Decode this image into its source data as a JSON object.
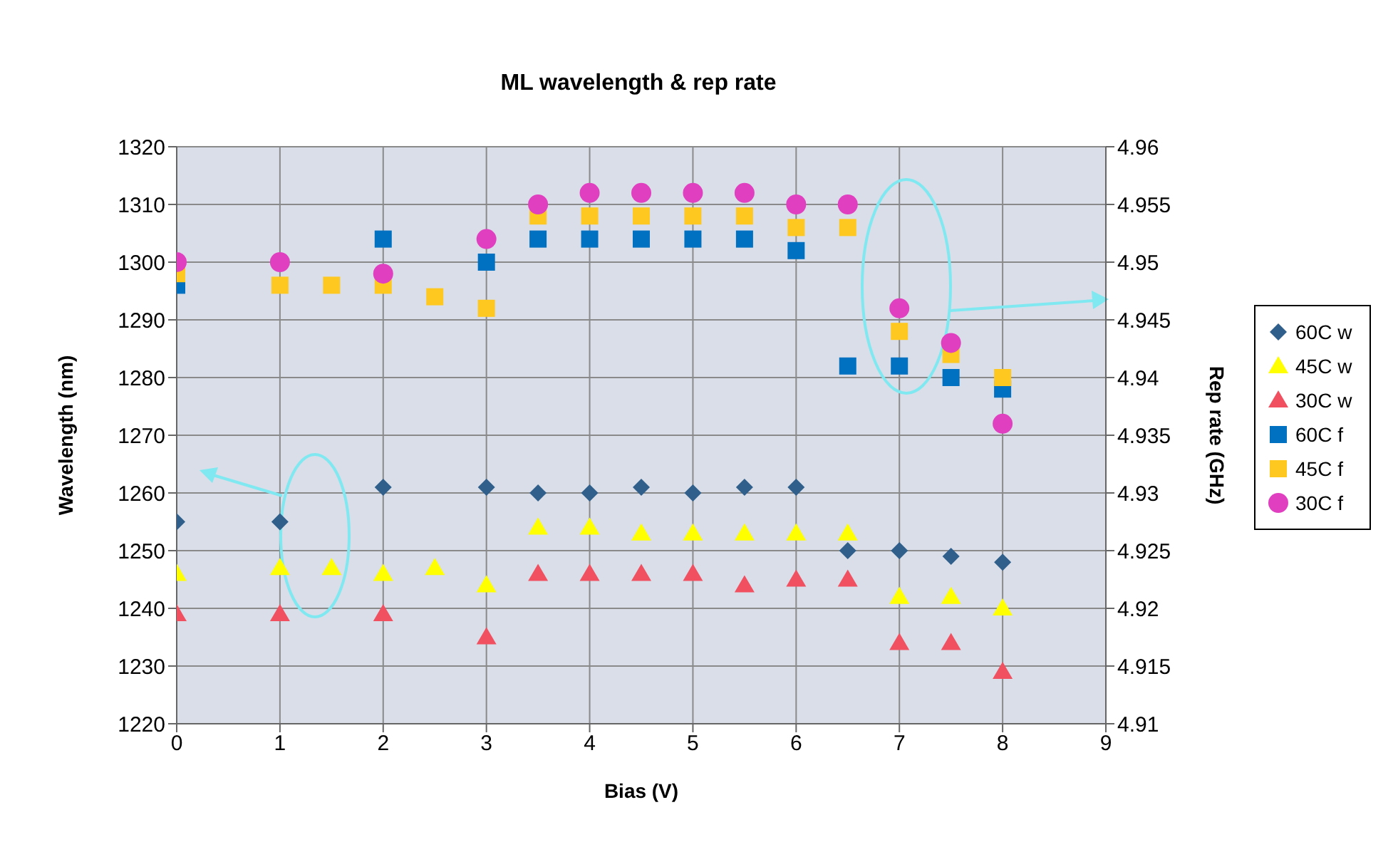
{
  "chart_data": {
    "type": "scatter",
    "title": "ML wavelength & rep rate",
    "xlabel": "Bias (V)",
    "ylabel": "Wavelength (nm)",
    "y2label": "Rep rate (GHz)",
    "xlim": [
      0,
      9
    ],
    "xticks": [
      0,
      1,
      2,
      3,
      4,
      5,
      6,
      7,
      8,
      9
    ],
    "ylim": [
      1220,
      1320
    ],
    "yticks": [
      1220,
      1230,
      1240,
      1250,
      1260,
      1270,
      1280,
      1290,
      1300,
      1310,
      1320
    ],
    "y2lim": [
      4.91,
      4.96
    ],
    "y2ticks": [
      4.91,
      4.915,
      4.92,
      4.925,
      4.93,
      4.935,
      4.94,
      4.945,
      4.95,
      4.955,
      4.96
    ],
    "grid": true,
    "legend": "right",
    "series": [
      {
        "name": "60C w",
        "color": "#2f5f8a",
        "marker": "diamond",
        "x": [
          0,
          1,
          2,
          3,
          3.5,
          4,
          4.5,
          5,
          5.5,
          6,
          6.5,
          7,
          7.5,
          8
        ],
        "values": [
          1255,
          1255,
          1261,
          1261,
          1260,
          1260,
          1261,
          1260,
          1261,
          1261,
          1250,
          1250,
          1249,
          1248
        ]
      },
      {
        "name": "45C w",
        "color": "#ffff00",
        "marker": "triangle",
        "x": [
          0,
          1,
          1.5,
          2,
          2.5,
          3,
          3.5,
          4,
          4.5,
          5,
          5.5,
          6,
          6.5,
          7,
          7.5,
          8
        ],
        "values": [
          1246,
          1247,
          1247,
          1246,
          1247,
          1244,
          1254,
          1254,
          1253,
          1253,
          1253,
          1253,
          1253,
          1242,
          1242,
          1240
        ]
      },
      {
        "name": "30C w",
        "color": "#f05060",
        "marker": "triangle",
        "x": [
          0,
          1,
          2,
          3,
          3.5,
          4,
          4.5,
          5,
          5.5,
          6,
          6.5,
          7,
          7.5,
          8
        ],
        "values": [
          1239,
          1239,
          1239,
          1235,
          1246,
          1246,
          1246,
          1246,
          1244,
          1245,
          1245,
          1234,
          1234,
          1229
        ]
      },
      {
        "name": "60C f",
        "color": "#0070c0",
        "marker": "square",
        "axis": "y2",
        "x": [
          0,
          1,
          2,
          3,
          3.5,
          4,
          4.5,
          5,
          5.5,
          6,
          6.5,
          7,
          7.5,
          8
        ],
        "values": [
          4.948,
          null,
          4.952,
          4.95,
          4.952,
          4.952,
          4.952,
          4.952,
          4.952,
          4.951,
          4.941,
          4.941,
          4.94,
          4.939
        ]
      },
      {
        "name": "45C f",
        "color": "#ffc820",
        "marker": "square",
        "axis": "y2",
        "x": [
          0,
          1,
          1.5,
          2,
          2.5,
          3,
          3.5,
          4,
          4.5,
          5,
          5.5,
          6,
          6.5,
          7,
          7.5,
          8
        ],
        "values": [
          4.949,
          4.948,
          4.948,
          4.948,
          4.947,
          4.946,
          4.954,
          4.954,
          4.954,
          4.954,
          4.954,
          4.953,
          4.953,
          4.944,
          4.942,
          4.94
        ]
      },
      {
        "name": "30C f",
        "color": "#e040c0",
        "marker": "circle",
        "axis": "y2",
        "x": [
          0,
          1,
          2,
          3,
          3.5,
          4,
          4.5,
          5,
          5.5,
          6,
          6.5,
          7,
          7.5,
          8
        ],
        "values": [
          4.95,
          4.95,
          4.949,
          4.952,
          4.955,
          4.956,
          4.956,
          4.956,
          4.956,
          4.955,
          4.955,
          4.946,
          4.943,
          4.936
        ]
      }
    ]
  }
}
